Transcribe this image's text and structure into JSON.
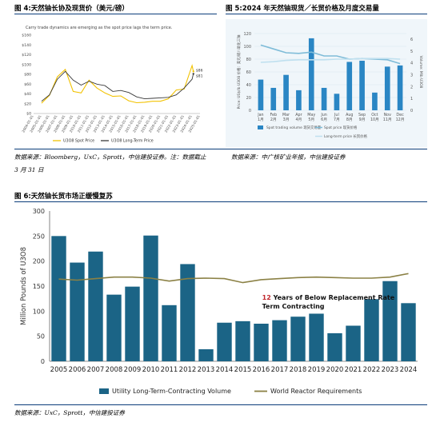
{
  "titles": {
    "fig4": "图 4:天然铀长协及现货价（美元/磅）",
    "fig5": "图 5:2024 年天然铀现货／长贸价格及月度交易量",
    "fig6": "图 6:天然铀长贸市场正缓慢复苏"
  },
  "sources": {
    "left": "数据来源：Bloomberg，UxC，Sprott，中信建投证券。注：数据截止",
    "left2": "3 月 31 日",
    "right": "数据来源：中广核矿业年报，中信建投证券",
    "bottom": "数据来源：UxC，Sprott，中信建投证券"
  },
  "colors": {
    "rule": "#0b3d7a",
    "spot": "#f2c200",
    "lt": "#3a3a3a",
    "bar5": "#2a86c4",
    "spot5": "#7fbcd8",
    "lt5": "#bfe0ef",
    "bar6": "#1b6486",
    "line6": "#8b8145",
    "anno_red": "#c0272d"
  },
  "chart_data": [
    {
      "type": "line",
      "subtitle": "Carry trade dynamics are emerging as the spot price lags the term price.",
      "x": [
        "2005-01",
        "2006-01",
        "2007-01",
        "2008-01",
        "2009-01",
        "2010-01",
        "2011-01",
        "2012-01",
        "2013-01",
        "2014-01",
        "2015-01",
        "2016-01",
        "2017-01",
        "2018-01",
        "2019-01",
        "2020-01",
        "2021-01",
        "2022-01",
        "2023-01",
        "2024-01",
        "2024-03"
      ],
      "x_ticks": [
        "2004-01-01",
        "2005-01-01",
        "2006-01-01",
        "2007-01-01",
        "2008-01-01",
        "2009-01-01",
        "2010-01-01",
        "2011-01-01",
        "2012-01-01",
        "2013-01-01",
        "2014-01-01",
        "2015-01-01",
        "2016-01-01",
        "2017-01-01",
        "2018-01-01",
        "2019-01-01",
        "2020-01-01",
        "2021-01-01",
        "2022-01-01",
        "2023-01-01",
        "2024-01-01",
        "2025-01-01"
      ],
      "y_ticks": [
        "$0",
        "$20",
        "$40",
        "$60",
        "$80",
        "$100",
        "$120",
        "$140",
        "$160"
      ],
      "ylim": [
        0,
        160
      ],
      "series": [
        {
          "name": "U3O8 Spot Price",
          "values": [
            21,
            37,
            75,
            90,
            45,
            42,
            68,
            52,
            42,
            35,
            36,
            26,
            22,
            23,
            25,
            25,
            30,
            48,
            50,
            98,
            86
          ]
        },
        {
          "name": "U3O8 Long-Term Price",
          "values": [
            25,
            38,
            70,
            86,
            68,
            58,
            66,
            60,
            57,
            45,
            47,
            43,
            34,
            30,
            31,
            32,
            33,
            38,
            52,
            70,
            81
          ]
        }
      ],
      "end_labels": [
        "$86",
        "$81"
      ]
    },
    {
      "type": "bar",
      "categories": [
        "Jan\n1月",
        "Feb\n2月",
        "Mar\n3月",
        "Apr\n4月",
        "May\n5月",
        "Jun\n6月",
        "Jul\n7月",
        "Aug\n8月",
        "Sep\n9月",
        "Oct\n10月",
        "Nov\n11月",
        "Dec\n12月"
      ],
      "month_en": [
        "Jan",
        "Feb",
        "Mar",
        "Apr",
        "May",
        "Jun",
        "Jul",
        "Aug",
        "Sep",
        "Oct",
        "Nov",
        "Dec"
      ],
      "month_cn": [
        "1月",
        "2月",
        "3月",
        "4月",
        "5月",
        "6月",
        "7月",
        "8月",
        "9月",
        "10月",
        "11月",
        "12月"
      ],
      "values": [
        2.6,
        1.9,
        3.0,
        1.7,
        6.1,
        1.9,
        1.4,
        4.1,
        4.2,
        1.5,
        3.7,
        3.8
      ],
      "series": [
        {
          "name": "Spot trading volume 现货交易量",
          "values": [
            2.6,
            1.9,
            3.0,
            1.7,
            6.1,
            1.9,
            1.4,
            4.1,
            4.2,
            1.5,
            3.7,
            3.8
          ]
        },
        {
          "name": "Spot price 现货价格",
          "values": [
            102,
            96,
            90,
            89,
            91,
            85,
            85,
            80,
            81,
            80,
            79,
            73
          ]
        },
        {
          "name": "Long-term price 长贸价格",
          "values": [
            75,
            76,
            78,
            79,
            79,
            79,
            80,
            80,
            81,
            81,
            81,
            80
          ]
        }
      ],
      "ylabel": "Price: US$/lb U3O8 价格：美元/磅八氧化三铀",
      "y2label": "Volume: Mlb U3O8",
      "ylim": [
        0,
        120
      ],
      "y2lim": [
        0,
        6.5
      ],
      "y_ticks": [
        "0",
        "20",
        "40",
        "60",
        "80",
        "100",
        "120"
      ],
      "y2_ticks": [
        "0",
        "1",
        "2",
        "3",
        "4",
        "5",
        "6"
      ]
    },
    {
      "type": "bar",
      "categories": [
        "2005",
        "2006",
        "2007",
        "2008",
        "2009",
        "2010",
        "2011",
        "2012",
        "2013",
        "2014",
        "2015",
        "2016",
        "2017",
        "2018",
        "2019",
        "2020",
        "2021",
        "2022",
        "2023",
        "2024"
      ],
      "series": [
        {
          "name": "Utility Long-Term-Contracting Volume",
          "values": [
            250,
            197,
            219,
            133,
            149,
            251,
            112,
            194,
            24,
            77,
            80,
            75,
            82,
            89,
            95,
            56,
            71,
            124,
            160,
            116
          ]
        },
        {
          "name": "World Reactor Requirements",
          "values": [
            164,
            162,
            165,
            168,
            168,
            166,
            160,
            165,
            166,
            165,
            157,
            163,
            165,
            167,
            168,
            167,
            166,
            166,
            168,
            175
          ]
        }
      ],
      "ylabel": "Million Pounds of U3O8",
      "ylim": [
        0,
        300
      ],
      "y_ticks": [
        "0",
        "50",
        "100",
        "150",
        "200",
        "250",
        "300"
      ],
      "annotation": {
        "number": "12",
        "line1": " Years of Below Replacement Rate",
        "line2": "Term Contracting"
      }
    }
  ]
}
